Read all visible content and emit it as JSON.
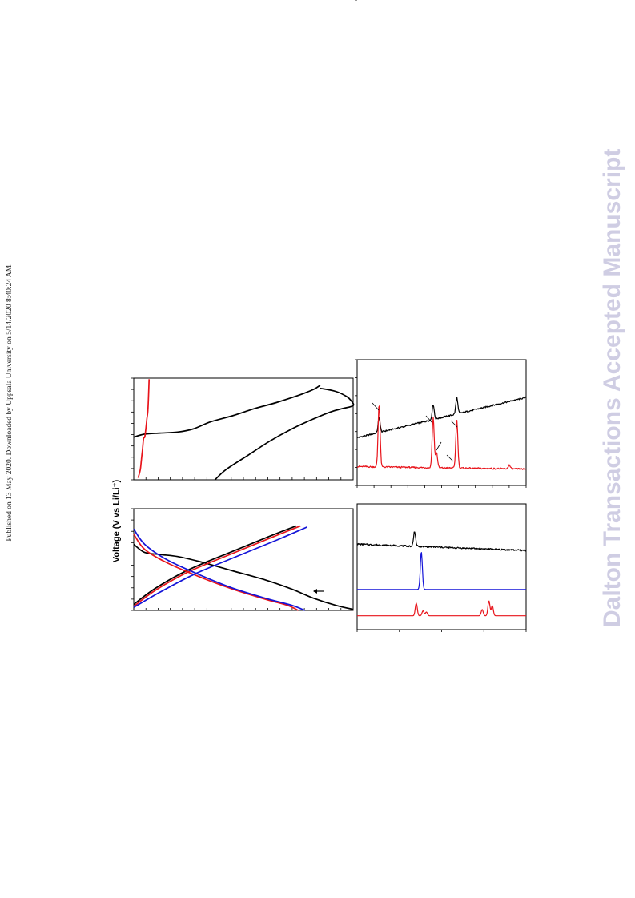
{
  "header": {
    "publish_line": "Published on 13 May 2020. Downloaded by Uppsala University on 5/14/2020 8:40:24 AM."
  },
  "watermark": {
    "text": "Dalton Transactions Accepted Manuscript",
    "color": "#cfcde3"
  },
  "figure": {
    "voltage_axis_label": "Voltage (V vs Li/Li⁺)",
    "colors": {
      "black": "#000000",
      "red": "#e8141b",
      "blue": "#1414d8"
    }
  },
  "chart_data": [
    {
      "type": "line",
      "name_in_figure": "upper-left voltage profile panel",
      "series": [
        {
          "color": "black",
          "points": [
            [
              0.37,
              0.0
            ],
            [
              0.42,
              0.1
            ],
            [
              0.52,
              0.24
            ],
            [
              0.62,
              0.38
            ],
            [
              0.72,
              0.5
            ],
            [
              0.82,
              0.6
            ],
            [
              0.9,
              0.67
            ],
            [
              0.95,
              0.7
            ],
            [
              1.0,
              0.73
            ],
            [
              0.99,
              0.78
            ],
            [
              0.97,
              0.82
            ],
            [
              0.92,
              0.87
            ],
            [
              0.85,
              0.9
            ]
          ]
        },
        {
          "color": "black",
          "points": [
            [
              0.0,
              0.42
            ],
            [
              0.05,
              0.45
            ],
            [
              0.12,
              0.46
            ],
            [
              0.2,
              0.47
            ],
            [
              0.27,
              0.5
            ],
            [
              0.35,
              0.57
            ],
            [
              0.45,
              0.63
            ],
            [
              0.55,
              0.7
            ],
            [
              0.65,
              0.76
            ],
            [
              0.75,
              0.83
            ],
            [
              0.82,
              0.89
            ],
            [
              0.85,
              0.93
            ]
          ]
        },
        {
          "color": "red",
          "points": [
            [
              0.02,
              0.02
            ],
            [
              0.03,
              0.1
            ],
            [
              0.035,
              0.2
            ],
            [
              0.04,
              0.3
            ],
            [
              0.045,
              0.41
            ],
            [
              0.05,
              0.42
            ],
            [
              0.055,
              0.5
            ],
            [
              0.06,
              0.6
            ],
            [
              0.065,
              0.7
            ],
            [
              0.07,
              0.99
            ]
          ]
        }
      ]
    },
    {
      "type": "line",
      "name_in_figure": "lower-left voltage profile panel",
      "series": [
        {
          "color": "black",
          "points": [
            [
              0.0,
              0.06
            ],
            [
              0.1,
              0.22
            ],
            [
              0.25,
              0.4
            ],
            [
              0.45,
              0.58
            ],
            [
              0.62,
              0.73
            ],
            [
              0.74,
              0.83
            ]
          ]
        },
        {
          "color": "black",
          "points": [
            [
              0.0,
              0.65
            ],
            [
              0.05,
              0.57
            ],
            [
              0.12,
              0.55
            ],
            [
              0.2,
              0.53
            ],
            [
              0.3,
              0.48
            ],
            [
              0.45,
              0.39
            ],
            [
              0.6,
              0.3
            ],
            [
              0.72,
              0.21
            ],
            [
              0.82,
              0.12
            ],
            [
              0.92,
              0.05
            ],
            [
              1.0,
              0.01
            ]
          ]
        },
        {
          "color": "red",
          "points": [
            [
              0.0,
              0.04
            ],
            [
              0.1,
              0.2
            ],
            [
              0.25,
              0.38
            ],
            [
              0.45,
              0.56
            ],
            [
              0.62,
              0.71
            ],
            [
              0.76,
              0.83
            ]
          ]
        },
        {
          "color": "red",
          "points": [
            [
              0.0,
              0.75
            ],
            [
              0.05,
              0.6
            ],
            [
              0.15,
              0.47
            ],
            [
              0.3,
              0.33
            ],
            [
              0.45,
              0.21
            ],
            [
              0.6,
              0.11
            ],
            [
              0.7,
              0.05
            ],
            [
              0.75,
              0.0
            ]
          ]
        },
        {
          "color": "blue",
          "points": [
            [
              0.0,
              0.03
            ],
            [
              0.12,
              0.18
            ],
            [
              0.28,
              0.36
            ],
            [
              0.48,
              0.54
            ],
            [
              0.65,
              0.69
            ],
            [
              0.79,
              0.82
            ]
          ]
        },
        {
          "color": "blue",
          "points": [
            [
              0.0,
              0.8
            ],
            [
              0.05,
              0.65
            ],
            [
              0.15,
              0.5
            ],
            [
              0.3,
              0.35
            ],
            [
              0.45,
              0.22
            ],
            [
              0.6,
              0.12
            ],
            [
              0.72,
              0.05
            ],
            [
              0.78,
              0.0
            ]
          ]
        }
      ]
    },
    {
      "type": "line",
      "name_in_figure": "upper-right diffraction panel",
      "series": [
        {
          "color": "black",
          "baseline": [
            0.38,
            0.7
          ],
          "peaks": [
            [
              0.13,
              0.12
            ],
            [
              0.45,
              0.12
            ],
            [
              0.59,
              0.13
            ]
          ]
        },
        {
          "color": "red",
          "baseline": [
            0.15,
            0.13
          ],
          "peaks": [
            [
              0.13,
              0.5
            ],
            [
              0.45,
              0.4
            ],
            [
              0.47,
              0.12
            ],
            [
              0.59,
              0.38
            ],
            [
              0.9,
              0.03
            ]
          ]
        }
      ]
    },
    {
      "type": "line",
      "name_in_figure": "lower-right diffraction panel",
      "series": [
        {
          "color": "black",
          "baseline": [
            0.68,
            0.63
          ],
          "peaks": [
            [
              0.34,
              0.12
            ]
          ]
        },
        {
          "color": "blue",
          "baseline": [
            0.32,
            0.32
          ],
          "peaks": [
            [
              0.38,
              0.3
            ]
          ]
        },
        {
          "color": "red",
          "baseline": [
            0.11,
            0.11
          ],
          "peaks": [
            [
              0.35,
              0.1
            ],
            [
              0.39,
              0.04
            ],
            [
              0.41,
              0.03
            ],
            [
              0.74,
              0.05
            ],
            [
              0.78,
              0.12
            ],
            [
              0.8,
              0.08
            ]
          ]
        }
      ]
    }
  ]
}
